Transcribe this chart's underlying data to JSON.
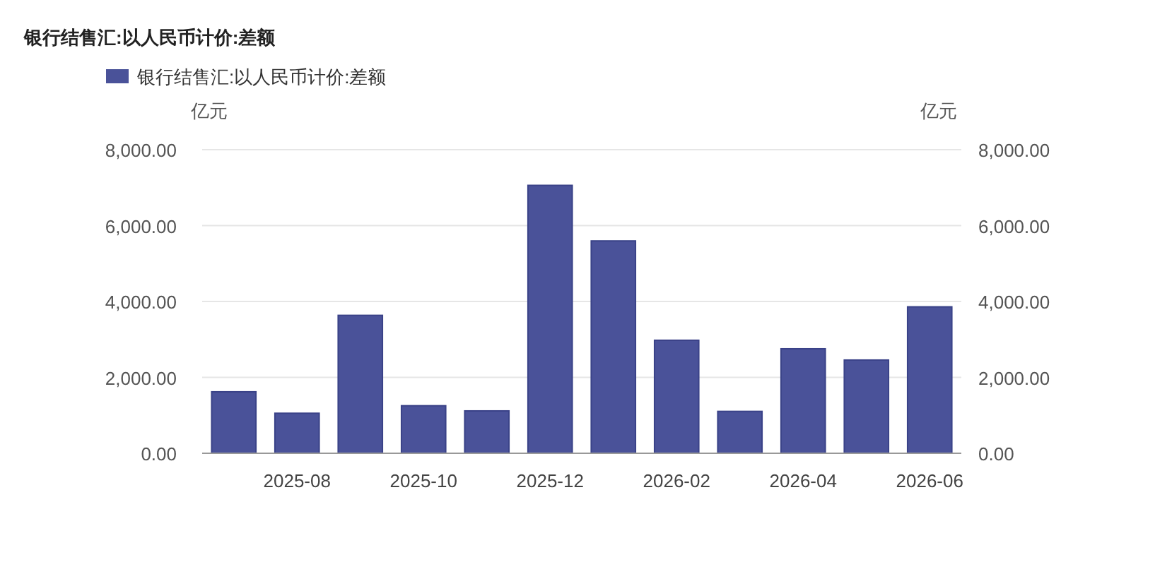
{
  "chart_data": {
    "type": "bar",
    "title": "银行结售汇:以人民币计价:差额",
    "categories": [
      null,
      "2025-08",
      null,
      "2025-10",
      null,
      "2025-12",
      null,
      "2026-02",
      null,
      "2026-04",
      null,
      "2026-06"
    ],
    "series": [
      {
        "name": "银行结售汇:以人民币计价:差额",
        "color": "#4a5299",
        "values": [
          1620,
          1055,
          3635,
          1253,
          1117,
          7060,
          5596,
          2978,
          1104,
          2754,
          2457,
          3859
        ]
      }
    ],
    "ylabel": "亿元",
    "y2label": "亿元",
    "ylim": [
      0,
      8000
    ],
    "yticks": [
      {
        "value": 0,
        "label": "0.00"
      },
      {
        "value": 2000,
        "label": "2,000.00"
      },
      {
        "value": 4000,
        "label": "4,000.00"
      },
      {
        "value": 6000,
        "label": "6,000.00"
      },
      {
        "value": 8000,
        "label": "8,000.00"
      }
    ],
    "y2lim": [
      0,
      8000
    ],
    "y2ticks": [
      {
        "value": 0,
        "label": "0.00"
      },
      {
        "value": 2000,
        "label": "2,000.00"
      },
      {
        "value": 4000,
        "label": "4,000.00"
      },
      {
        "value": 6000,
        "label": "6,000.00"
      },
      {
        "value": 8000,
        "label": "8,000.00"
      }
    ],
    "grid": "y",
    "legend": "top left"
  }
}
